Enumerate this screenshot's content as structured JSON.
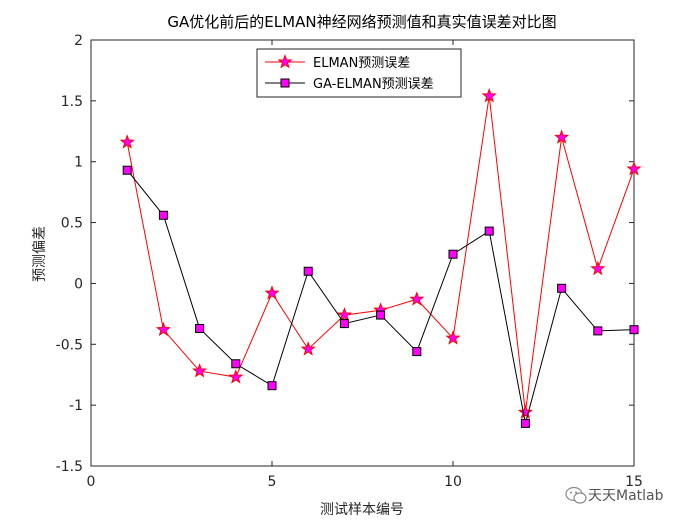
{
  "chart_data": {
    "type": "line",
    "title": "GA优化前后的ELMAN神经网络预测值和真实值误差对比图",
    "xlabel": "测试样本编号",
    "ylabel": "预测偏差",
    "xlim": [
      0,
      15
    ],
    "ylim": [
      -1.5,
      2
    ],
    "xticks": [
      0,
      5,
      10,
      15
    ],
    "yticks": [
      -1.5,
      -1,
      -0.5,
      0,
      0.5,
      1,
      1.5,
      2
    ],
    "xtick_labels": [
      "0",
      "5",
      "10",
      "15"
    ],
    "ytick_labels": [
      "-1.5",
      "-1",
      "-0.5",
      "0",
      "0.5",
      "1",
      "1.5",
      "2"
    ],
    "grid": false,
    "legend_position": "top-center",
    "x": [
      1,
      2,
      3,
      4,
      5,
      6,
      7,
      8,
      9,
      10,
      11,
      12,
      13,
      14,
      15
    ],
    "series": [
      {
        "name": "ELMAN预测误差",
        "color": "#ff0000",
        "marker": "star",
        "marker_fill": "#ff00ff",
        "values": [
          1.16,
          -0.38,
          -0.72,
          -0.77,
          -0.08,
          -0.54,
          -0.26,
          -0.22,
          -0.13,
          -0.45,
          1.54,
          -1.06,
          1.2,
          0.12,
          0.94
        ]
      },
      {
        "name": "GA-ELMAN预测误差",
        "color": "#000000",
        "marker": "square",
        "marker_fill": "#ff00ff",
        "values": [
          0.93,
          0.56,
          -0.37,
          -0.66,
          -0.84,
          0.1,
          -0.33,
          -0.26,
          -0.56,
          0.24,
          0.43,
          -1.15,
          -0.04,
          -0.39,
          -0.38
        ]
      }
    ]
  },
  "watermark": {
    "text": "天天Matlab",
    "icon": "wechat-icon"
  }
}
